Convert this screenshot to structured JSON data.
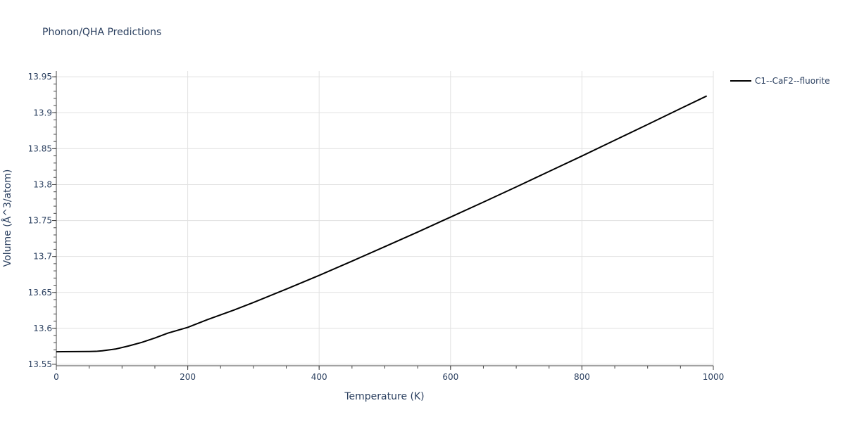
{
  "chart_data": {
    "type": "line",
    "title": "Phonon/QHA Predictions",
    "xlabel": "Temperature (K)",
    "ylabel": "Volume (Å^3/atom)",
    "xlim": [
      0,
      1000
    ],
    "ylim": [
      13.548,
      13.958
    ],
    "x_ticks": [
      0,
      200,
      400,
      600,
      800,
      1000
    ],
    "x_tick_labels": [
      "0",
      "200",
      "400",
      "600",
      "800",
      "1000"
    ],
    "y_ticks": [
      13.55,
      13.6,
      13.65,
      13.7,
      13.75,
      13.8,
      13.85,
      13.9,
      13.95
    ],
    "y_tick_labels": [
      "13.55",
      "13.6",
      "13.65",
      "13.7",
      "13.75",
      "13.8",
      "13.85",
      "13.9",
      "13.95"
    ],
    "grid": true,
    "legend_position": "top-right",
    "series": [
      {
        "name": "C1--CaF2--fluorite",
        "color": "#000000",
        "x": [
          0,
          10,
          30,
          50,
          60,
          70,
          90,
          110,
          130,
          150,
          170,
          200,
          230,
          270,
          300,
          350,
          400,
          450,
          500,
          550,
          600,
          650,
          700,
          750,
          800,
          850,
          900,
          950,
          990
        ],
        "y": [
          13.5675,
          13.5676,
          13.5677,
          13.5678,
          13.568,
          13.5688,
          13.5712,
          13.5755,
          13.5805,
          13.5866,
          13.5934,
          13.6014,
          13.6122,
          13.6254,
          13.636,
          13.6546,
          13.6737,
          13.6935,
          13.7137,
          13.734,
          13.7548,
          13.7756,
          13.7968,
          13.8183,
          13.8398,
          13.8617,
          13.8836,
          13.9058,
          13.9233
        ]
      }
    ]
  }
}
